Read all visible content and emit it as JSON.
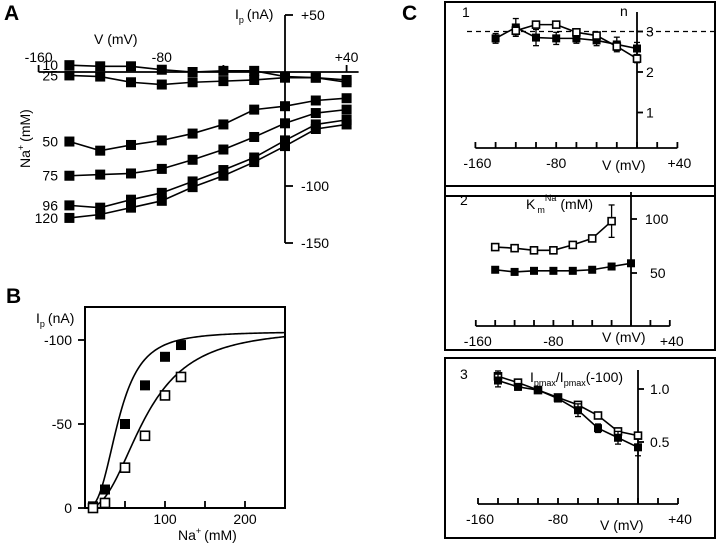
{
  "figure": {
    "panel_labels": [
      "A",
      "B",
      "C"
    ],
    "subpanel_labels": [
      "1",
      "2",
      "3"
    ]
  },
  "chart_data": [
    {
      "id": "A",
      "type": "line",
      "title": "",
      "xlabel": "V (mV)",
      "ylabel": "I_p (nA)",
      "ylabel_main": "I",
      "ylabel_sub": "p",
      "ylabel_unit": "(nA)",
      "series_axis_label": "Na⁺ (mM)",
      "series_axis_main": "Na",
      "series_axis_sup": "+",
      "series_axis_unit": "(mM)",
      "xlim": [
        -160,
        40
      ],
      "ylim": [
        -150,
        50
      ],
      "xticks": [
        -160,
        -80,
        40
      ],
      "xtick_labels": [
        "-160",
        "-80",
        "+40"
      ],
      "yticks": [
        50,
        -100,
        -150
      ],
      "ytick_labels": [
        "+50",
        "-100",
        "-150"
      ],
      "x": [
        -140,
        -120,
        -100,
        -80,
        -60,
        -40,
        -20,
        0,
        20,
        40
      ],
      "marker": "filled-square",
      "series": [
        {
          "name": "10",
          "values": [
            6,
            5,
            5,
            2,
            0,
            1,
            1,
            -4,
            -5,
            -7
          ]
        },
        {
          "name": "25",
          "values": [
            -3,
            -4,
            -9,
            -11,
            -9,
            -8,
            -7,
            -5,
            -5,
            -9
          ]
        },
        {
          "name": "50",
          "values": [
            -61,
            -69,
            -64,
            -60,
            -54,
            -46,
            -33,
            -30,
            -25,
            -23
          ]
        },
        {
          "name": "75",
          "values": [
            -91,
            -90,
            -89,
            -85,
            -77,
            -68,
            -57,
            -45,
            -36,
            -33
          ]
        },
        {
          "name": "96",
          "values": [
            -117,
            -119,
            -112,
            -106,
            -96,
            -86,
            -75,
            -60,
            -46,
            -42
          ]
        },
        {
          "name": "120",
          "values": [
            -128,
            -125,
            -119,
            -113,
            -101,
            -91,
            -79,
            -65,
            -50,
            -46
          ]
        }
      ]
    },
    {
      "id": "B",
      "type": "scatter",
      "title": "",
      "xlabel": "Na⁺ (mM)",
      "xlabel_main": "Na",
      "xlabel_sup": "+",
      "xlabel_unit": "(mM)",
      "ylabel": "I_p (nA)",
      "ylabel_main": "I",
      "ylabel_sub": "p",
      "ylabel_unit": "(nA)",
      "xlim": [
        0,
        250
      ],
      "ylim": [
        0,
        -120
      ],
      "xticks": [
        100,
        200
      ],
      "xtick_labels": [
        "100",
        "200"
      ],
      "yticks": [
        0,
        -50,
        -100
      ],
      "ytick_labels": [
        "0",
        "-50",
        "-100"
      ],
      "series": [
        {
          "name": "filled",
          "marker": "filled-square",
          "x": [
            10,
            25,
            50,
            75,
            100,
            120
          ],
          "values": [
            -1,
            -11,
            -50,
            -73,
            -90,
            -97
          ],
          "fit": {
            "imax": -105,
            "k": 42,
            "n": 2.9
          }
        },
        {
          "name": "open",
          "marker": "open-square",
          "x": [
            10,
            25,
            50,
            75,
            100,
            120
          ],
          "values": [
            0,
            -3,
            -24,
            -43,
            -67,
            -78
          ],
          "fit": {
            "imax": -107,
            "k": 75,
            "n": 2.5
          }
        }
      ]
    },
    {
      "id": "C1",
      "type": "line",
      "title": "",
      "xlabel": "V (mV)",
      "ylabel": "n",
      "xlim": [
        -160,
        40
      ],
      "ylim": [
        0,
        3.6
      ],
      "xticks": [
        -160,
        -140,
        -120,
        -100,
        -80,
        -60,
        -40,
        -20,
        0,
        20,
        40
      ],
      "xtick_labels": [
        "-160",
        "-80",
        "+40"
      ],
      "xtick_label_values": [
        -160,
        -80,
        40
      ],
      "yticks": [
        1,
        2,
        3
      ],
      "ytick_labels": [
        "1",
        "2",
        "3"
      ],
      "reference_line": 3,
      "series": [
        {
          "name": "filled",
          "marker": "filled-square",
          "x": [
            -140,
            -120,
            -100,
            -80,
            -60,
            -40,
            -20,
            0
          ],
          "values": [
            2.83,
            3.1,
            2.85,
            2.83,
            2.83,
            2.78,
            2.68,
            2.58
          ],
          "err": [
            0.12,
            0.22,
            0.2,
            0.15,
            0.12,
            0.13,
            0.18,
            0.15
          ]
        },
        {
          "name": "open",
          "marker": "open-square",
          "x": [
            -120,
            -100,
            -80,
            -60,
            -40,
            -20,
            0
          ],
          "values": [
            3.02,
            3.17,
            3.17,
            2.98,
            2.9,
            2.63,
            2.33
          ],
          "err": [
            0.1,
            0.06,
            0.06,
            0.06,
            0.08,
            0.1,
            0.1
          ]
        }
      ]
    },
    {
      "id": "C2",
      "type": "line",
      "title": "",
      "xlabel": "V (mV)",
      "ylabel": "K_m^Na (mM)",
      "ylabel_main": "K",
      "ylabel_sub": "m",
      "ylabel_sup": "Na",
      "ylabel_unit": "(mM)",
      "xlim": [
        -160,
        40
      ],
      "ylim": [
        0,
        120
      ],
      "xticks": [
        -160,
        -140,
        -120,
        -100,
        -80,
        -60,
        -40,
        -20,
        0,
        20,
        40
      ],
      "xtick_labels": [
        "-160",
        "-80",
        "+40"
      ],
      "xtick_label_values": [
        -160,
        -80,
        40
      ],
      "yticks": [
        50,
        100
      ],
      "ytick_labels": [
        "50",
        "100"
      ],
      "series": [
        {
          "name": "open",
          "marker": "open-square",
          "x": [
            -140,
            -120,
            -100,
            -80,
            -60,
            -40,
            -20
          ],
          "values": [
            74,
            73,
            71,
            71,
            76,
            82,
            98
          ],
          "err": [
            0,
            0,
            0,
            0,
            0,
            0,
            15
          ]
        },
        {
          "name": "filled",
          "marker": "filled-square",
          "x": [
            -140,
            -120,
            -100,
            -80,
            -60,
            -40,
            -20,
            0
          ],
          "values": [
            53,
            51,
            52,
            52,
            52,
            53,
            56,
            59
          ],
          "err": [
            0,
            2,
            2,
            0,
            0,
            0,
            0,
            0
          ]
        }
      ]
    },
    {
      "id": "C3",
      "type": "line",
      "title": "",
      "xlabel": "V (mV)",
      "ylabel": "I_pmax/I_pmax(-100)",
      "ylabel_parts": [
        "I",
        "pmax",
        "/I",
        "pmax",
        "(-100)"
      ],
      "xlim": [
        -160,
        40
      ],
      "ylim": [
        0,
        1.3
      ],
      "xticks": [
        -160,
        -140,
        -120,
        -100,
        -80,
        -60,
        -40,
        -20,
        0,
        20,
        40
      ],
      "xtick_labels": [
        "-160",
        "-80",
        "+40"
      ],
      "xtick_label_values": [
        -160,
        -80,
        40
      ],
      "yticks": [
        0.5,
        1.0
      ],
      "ytick_labels": [
        "0.5",
        "1.0"
      ],
      "series": [
        {
          "name": "open",
          "marker": "open-square",
          "x": [
            -140,
            -120,
            -100,
            -80,
            -60,
            -40,
            -20,
            0
          ],
          "values": [
            1.12,
            1.06,
            0.99,
            0.92,
            0.85,
            0.75,
            0.6,
            0.56
          ],
          "err": [
            0.05,
            0.02,
            0,
            0.02,
            0.03,
            0.02,
            0.02,
            0.02
          ]
        },
        {
          "name": "filled",
          "marker": "filled-square",
          "x": [
            -140,
            -120,
            -100,
            -80,
            -60,
            -40,
            -20,
            0
          ],
          "values": [
            1.08,
            1.02,
            0.99,
            0.91,
            0.8,
            0.63,
            0.54,
            0.45
          ],
          "err": [
            0.06,
            0.03,
            0,
            0.03,
            0.06,
            0.04,
            0.06,
            0.08
          ]
        }
      ]
    }
  ]
}
